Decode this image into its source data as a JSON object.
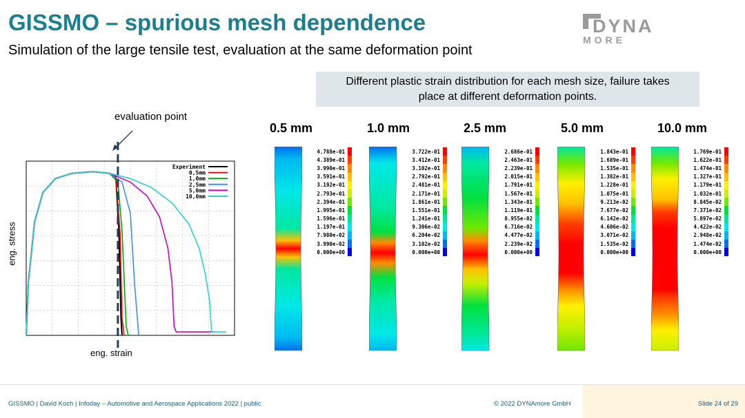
{
  "title": "GISSMO – spurious mesh dependence",
  "subtitle": "Simulation of the large tensile test, evaluation at the same deformation point",
  "logo": {
    "text_main": "DYNA",
    "text_sub": "MORE"
  },
  "callout": {
    "line1": "Different plastic strain distribution for each mesh size, failure takes",
    "line2": "place at different deformation points."
  },
  "evaluation_label": "evaluation point",
  "chart_data": {
    "type": "line",
    "xlabel": "eng. strain",
    "ylabel": "eng. stress",
    "grid": true,
    "legend_position": "top-right",
    "x_range": [
      0,
      1
    ],
    "y_range": [
      0,
      1
    ],
    "evaluation_point_x": 0.44,
    "series": [
      {
        "name": "Experiment",
        "color": "#000000",
        "points": [
          [
            0,
            0
          ],
          [
            0.01,
            0.3
          ],
          [
            0.04,
            0.65
          ],
          [
            0.08,
            0.82
          ],
          [
            0.14,
            0.9
          ],
          [
            0.22,
            0.93
          ],
          [
            0.32,
            0.94
          ],
          [
            0.4,
            0.93
          ],
          [
            0.43,
            0.91
          ],
          [
            0.445,
            0.6
          ],
          [
            0.455,
            0.1
          ],
          [
            0.46,
            0.0
          ]
        ]
      },
      {
        "name": "0,5mm",
        "color": "#ff0000",
        "points": [
          [
            0,
            0
          ],
          [
            0.01,
            0.3
          ],
          [
            0.04,
            0.65
          ],
          [
            0.08,
            0.82
          ],
          [
            0.14,
            0.9
          ],
          [
            0.22,
            0.93
          ],
          [
            0.32,
            0.94
          ],
          [
            0.4,
            0.93
          ],
          [
            0.43,
            0.9
          ],
          [
            0.45,
            0.6
          ],
          [
            0.46,
            0.1
          ],
          [
            0.47,
            0.0
          ]
        ]
      },
      {
        "name": "1,0mm",
        "color": "#00aa00",
        "points": [
          [
            0,
            0
          ],
          [
            0.01,
            0.3
          ],
          [
            0.04,
            0.65
          ],
          [
            0.08,
            0.82
          ],
          [
            0.14,
            0.9
          ],
          [
            0.22,
            0.93
          ],
          [
            0.32,
            0.94
          ],
          [
            0.4,
            0.93
          ],
          [
            0.44,
            0.88
          ],
          [
            0.46,
            0.6
          ],
          [
            0.48,
            0.05
          ],
          [
            0.49,
            0.0
          ]
        ]
      },
      {
        "name": "2,5mm",
        "color": "#3f8fdf",
        "points": [
          [
            0,
            0
          ],
          [
            0.01,
            0.3
          ],
          [
            0.04,
            0.65
          ],
          [
            0.08,
            0.82
          ],
          [
            0.14,
            0.9
          ],
          [
            0.22,
            0.93
          ],
          [
            0.32,
            0.94
          ],
          [
            0.4,
            0.93
          ],
          [
            0.46,
            0.88
          ],
          [
            0.5,
            0.7
          ],
          [
            0.52,
            0.3
          ],
          [
            0.54,
            0.0
          ]
        ]
      },
      {
        "name": "5,0mm",
        "color": "#cc00cc",
        "points": [
          [
            0,
            0
          ],
          [
            0.01,
            0.3
          ],
          [
            0.04,
            0.65
          ],
          [
            0.08,
            0.82
          ],
          [
            0.14,
            0.9
          ],
          [
            0.22,
            0.93
          ],
          [
            0.32,
            0.94
          ],
          [
            0.4,
            0.93
          ],
          [
            0.5,
            0.88
          ],
          [
            0.58,
            0.8
          ],
          [
            0.64,
            0.68
          ],
          [
            0.68,
            0.5
          ],
          [
            0.7,
            0.3
          ],
          [
            0.71,
            0.05
          ],
          [
            0.72,
            0.02
          ],
          [
            0.9,
            0.02
          ]
        ]
      },
      {
        "name": "10,0mm",
        "color": "#22d4d4",
        "points": [
          [
            0,
            0
          ],
          [
            0.01,
            0.3
          ],
          [
            0.04,
            0.65
          ],
          [
            0.08,
            0.82
          ],
          [
            0.14,
            0.9
          ],
          [
            0.22,
            0.93
          ],
          [
            0.32,
            0.94
          ],
          [
            0.4,
            0.93
          ],
          [
            0.5,
            0.9
          ],
          [
            0.6,
            0.85
          ],
          [
            0.7,
            0.76
          ],
          [
            0.78,
            0.64
          ],
          [
            0.83,
            0.5
          ],
          [
            0.86,
            0.35
          ],
          [
            0.88,
            0.2
          ],
          [
            0.89,
            0.02
          ],
          [
            0.96,
            0.02
          ]
        ]
      }
    ]
  },
  "meshes": [
    {
      "label": "0.5 mm",
      "pattern": "center-hot-small",
      "legend": [
        "4.788e-01",
        "4.389e-01",
        "3.990e-01",
        "3.591e-01",
        "3.192e-01",
        "2.793e-01",
        "2.394e-01",
        "1.995e-01",
        "1.596e-01",
        "1.197e-01",
        "7.980e-02",
        "3.990e-02",
        "0.000e+00"
      ]
    },
    {
      "label": "1.0 mm",
      "pattern": "center-hot-medium",
      "legend": [
        "3.722e-01",
        "3.412e-01",
        "3.102e-01",
        "2.792e-01",
        "2.481e-01",
        "2.171e-01",
        "1.861e-01",
        "1.551e-01",
        "1.241e-01",
        "9.306e-02",
        "6.204e-02",
        "3.102e-02",
        "0.000e+00"
      ]
    },
    {
      "label": "2.5 mm",
      "pattern": "center-hot-wide",
      "legend": [
        "2.686e-01",
        "2.463e-01",
        "2.239e-01",
        "2.015e-01",
        "1.791e-01",
        "1.567e-01",
        "1.343e-01",
        "1.119e-01",
        "8.955e-02",
        "6.716e-02",
        "4.477e-02",
        "2.239e-02",
        "0.000e+00"
      ]
    },
    {
      "label": "5.0 mm",
      "pattern": "broad-hot",
      "legend": [
        "1.843e-01",
        "1.689e-01",
        "1.535e-01",
        "1.382e-01",
        "1.228e-01",
        "1.075e-01",
        "9.213e-02",
        "7.677e-02",
        "6.142e-02",
        "4.606e-02",
        "3.071e-02",
        "1.535e-02",
        "0.000e+00"
      ]
    },
    {
      "label": "10.0 mm",
      "pattern": "broad-hot-coarse",
      "legend": [
        "1.769e-01",
        "1.622e-01",
        "1.474e-01",
        "1.327e-01",
        "1.179e-01",
        "1.032e-01",
        "8.845e-02",
        "7.371e-02",
        "5.897e-02",
        "4.422e-02",
        "2.948e-02",
        "1.474e-02",
        "0.000e+00"
      ]
    }
  ],
  "legend_colors": [
    "#ff0000",
    "#ff3c00",
    "#ff8c00",
    "#ffc000",
    "#fff000",
    "#c8f000",
    "#70e800",
    "#00e040",
    "#00e8a0",
    "#00e8e8",
    "#00b8f0",
    "#0070f0",
    "#0000e0"
  ],
  "footer": {
    "left": "GISSMO | David Koch | Infoday – Automotive and Aerospace Applications 2022 | public",
    "copyright": "© 2022 DYNAmore GmbH",
    "slide": "Slide 24 of 29"
  }
}
